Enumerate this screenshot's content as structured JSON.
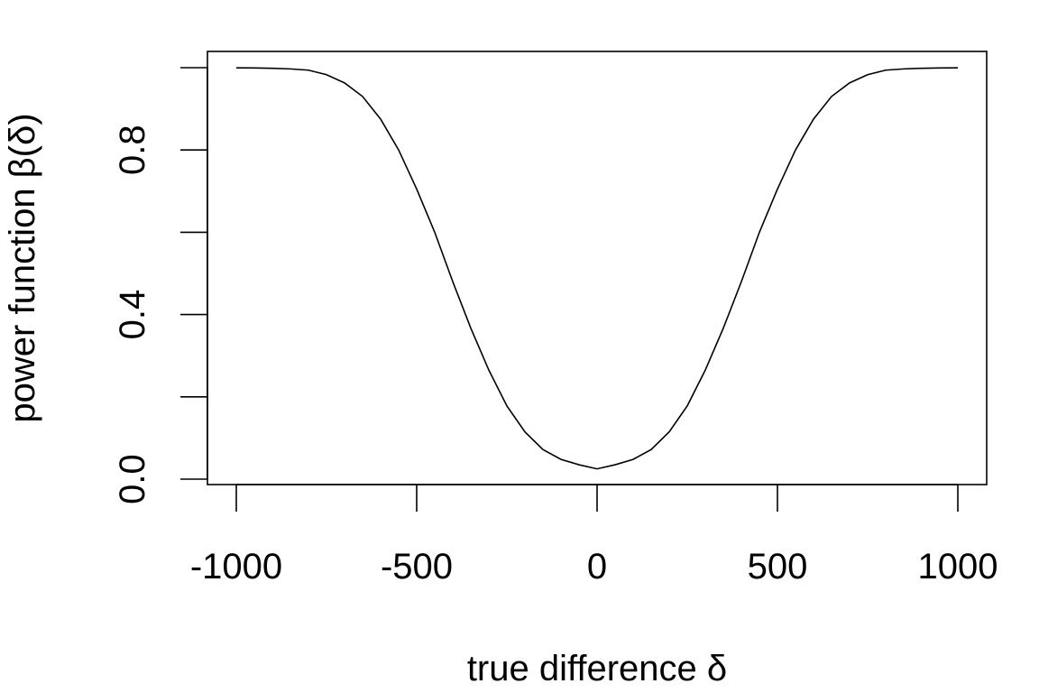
{
  "chart_data": {
    "type": "line",
    "title": "",
    "xlabel": "true difference δ",
    "ylabel": "power function β(δ)",
    "xlim": [
      -1000,
      1000
    ],
    "ylim": [
      0,
      1
    ],
    "x_ticks": [
      -1000,
      -500,
      0,
      500,
      1000
    ],
    "x_tick_labels": [
      "-1000",
      "-500",
      "0",
      "500",
      "1000"
    ],
    "y_ticks": [
      0,
      0.2,
      0.4,
      0.6,
      0.8,
      1.0
    ],
    "y_tick_labels": [
      "0.0",
      "",
      "0.4",
      "",
      "0.8",
      ""
    ],
    "grid": false,
    "series": [
      {
        "name": "power function",
        "color": "#000000",
        "x": [
          -1000,
          -950,
          -900,
          -850,
          -800,
          -750,
          -700,
          -650,
          -600,
          -550,
          -500,
          -450,
          -400,
          -350,
          -300,
          -250,
          -200,
          -150,
          -100,
          -50,
          0,
          50,
          100,
          150,
          200,
          250,
          300,
          350,
          400,
          450,
          500,
          550,
          600,
          650,
          700,
          750,
          800,
          850,
          900,
          950,
          1000
        ],
        "y": [
          0.9996,
          0.9993,
          0.9985,
          0.997,
          0.994,
          0.983,
          0.963,
          0.93,
          0.875,
          0.8,
          0.705,
          0.6,
          0.48,
          0.367,
          0.265,
          0.178,
          0.115,
          0.072,
          0.048,
          0.035,
          0.025,
          0.035,
          0.048,
          0.072,
          0.115,
          0.178,
          0.265,
          0.367,
          0.48,
          0.6,
          0.705,
          0.8,
          0.875,
          0.93,
          0.963,
          0.983,
          0.994,
          0.997,
          0.9985,
          0.9993,
          0.9996
        ]
      }
    ]
  }
}
